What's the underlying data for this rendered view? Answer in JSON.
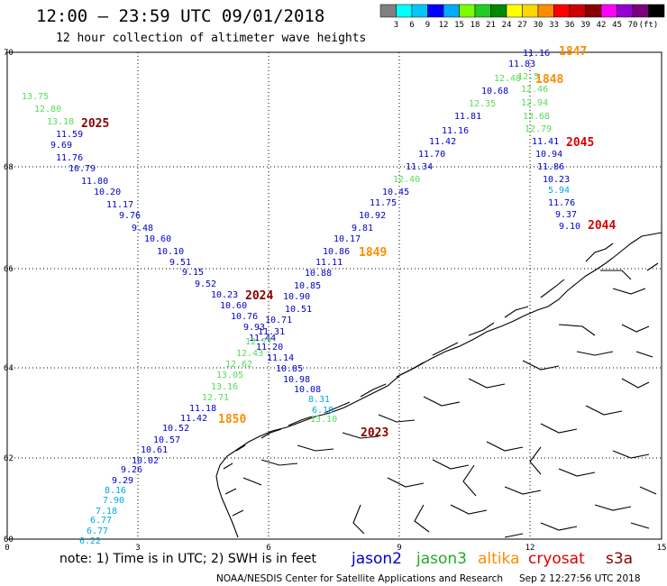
{
  "header": {
    "title": "12:00 – 23:59 UTC 09/01/2018",
    "subtitle": "12 hour collection of altimeter wave heights"
  },
  "colorbar": {
    "colors": [
      "#808080",
      "#00ffff",
      "#00c8ff",
      "#0000ff",
      "#00aaff",
      "#7cfc00",
      "#22cc22",
      "#008800",
      "#ffff00",
      "#ffd700",
      "#ff8c00",
      "#ff0000",
      "#cc0000",
      "#880000",
      "#ff00ff",
      "#9400d3",
      "#7b007b",
      "#000000"
    ],
    "labels": [
      "3",
      "6",
      "9",
      "12",
      "15",
      "18",
      "21",
      "24",
      "27",
      "30",
      "33",
      "36",
      "39",
      "42",
      "45",
      "70",
      "(ft)"
    ]
  },
  "axes": {
    "lat_labels": [
      "70",
      "68",
      "66",
      "64",
      "62",
      "60"
    ],
    "lon_labels": [
      "0",
      "3",
      "6",
      "9",
      "12",
      "15"
    ]
  },
  "passes": [
    {
      "time": "2025",
      "color": "#880000",
      "points": [
        {
          "v": "13.75",
          "c": "#55dd55"
        },
        {
          "v": "12.80",
          "c": "#55dd55"
        },
        {
          "v": "13.18",
          "c": "#55dd55"
        },
        {
          "v": "11.59",
          "c": "#0000cc"
        },
        {
          "v": "9.69",
          "c": "#0000cc"
        },
        {
          "v": "11.76",
          "c": "#0000cc"
        },
        {
          "v": "10.79",
          "c": "#0000cc"
        },
        {
          "v": "11.80",
          "c": "#0000cc"
        },
        {
          "v": "10.20",
          "c": "#0000cc"
        },
        {
          "v": "11.17",
          "c": "#0000cc"
        },
        {
          "v": "9.76",
          "c": "#0000cc"
        },
        {
          "v": "9.48",
          "c": "#0000cc"
        },
        {
          "v": "10.60",
          "c": "#0000cc"
        },
        {
          "v": "10.10",
          "c": "#0000cc"
        },
        {
          "v": "9.51",
          "c": "#0000cc"
        },
        {
          "v": "9.15",
          "c": "#0000cc"
        },
        {
          "v": "9.52",
          "c": "#0000cc"
        },
        {
          "v": "10.23",
          "c": "#0000cc"
        }
      ]
    },
    {
      "time": "2024",
      "color": "#880000",
      "points": [
        {
          "v": "10.60",
          "c": "#0000cc"
        },
        {
          "v": "10.76",
          "c": "#0000cc"
        },
        {
          "v": "9.93",
          "c": "#0000cc"
        },
        {
          "v": "11.44",
          "c": "#0000cc"
        },
        {
          "v": "12.??",
          "c": "#55dd55"
        },
        {
          "v": "12.43",
          "c": "#55dd55"
        },
        {
          "v": "12.62",
          "c": "#55dd55"
        },
        {
          "v": "13.05",
          "c": "#55dd55"
        },
        {
          "v": "13.16",
          "c": "#55dd55"
        },
        {
          "v": "12.71",
          "c": "#55dd55"
        },
        {
          "v": "11.18",
          "c": "#0000cc"
        },
        {
          "v": "11.42",
          "c": "#0000cc"
        },
        {
          "v": "10.52",
          "c": "#0000cc"
        },
        {
          "v": "10.57",
          "c": "#0000cc"
        },
        {
          "v": "10.61",
          "c": "#0000cc"
        },
        {
          "v": "10.02",
          "c": "#0000cc"
        },
        {
          "v": "9.26",
          "c": "#0000cc"
        },
        {
          "v": "9.29",
          "c": "#0000cc"
        },
        {
          "v": "8.16",
          "c": "#00aadd"
        },
        {
          "v": "7.90",
          "c": "#00aadd"
        },
        {
          "v": "7.18",
          "c": "#00aadd"
        },
        {
          "v": "6.77",
          "c": "#00aadd"
        },
        {
          "v": "6.77",
          "c": "#00aadd"
        },
        {
          "v": "6.22",
          "c": "#00aadd"
        }
      ]
    },
    {
      "time": "1850",
      "color": "#ff8c00"
    },
    {
      "time": "1849",
      "color": "#ff8c00",
      "points": [
        {
          "v": "11.16",
          "c": "#0000cc"
        },
        {
          "v": "11.83",
          "c": "#0000cc"
        },
        {
          "v": "12.48",
          "c": "#55dd55"
        },
        {
          "v": "10.68",
          "c": "#0000cc"
        },
        {
          "v": "12.35",
          "c": "#55dd55"
        },
        {
          "v": "11.81",
          "c": "#0000cc"
        },
        {
          "v": "11.16",
          "c": "#0000cc"
        },
        {
          "v": "11.42",
          "c": "#0000cc"
        },
        {
          "v": "11.70",
          "c": "#0000cc"
        },
        {
          "v": "11.34",
          "c": "#0000cc"
        },
        {
          "v": "12.40",
          "c": "#55dd55"
        },
        {
          "v": "10.45",
          "c": "#0000cc"
        },
        {
          "v": "11.75",
          "c": "#0000cc"
        },
        {
          "v": "10.92",
          "c": "#0000cc"
        },
        {
          "v": "9.81",
          "c": "#0000cc"
        },
        {
          "v": "10.17",
          "c": "#0000cc"
        },
        {
          "v": "10.86",
          "c": "#0000cc"
        },
        {
          "v": "11.11",
          "c": "#0000cc"
        },
        {
          "v": "10.88",
          "c": "#0000cc"
        },
        {
          "v": "10.85",
          "c": "#0000cc"
        },
        {
          "v": "10.90",
          "c": "#0000cc"
        },
        {
          "v": "10.51",
          "c": "#0000cc"
        },
        {
          "v": "10.71",
          "c": "#0000cc"
        },
        {
          "v": "11.31",
          "c": "#0000cc"
        },
        {
          "v": "11.20",
          "c": "#0000cc"
        },
        {
          "v": "11.14",
          "c": "#0000cc"
        },
        {
          "v": "10.85",
          "c": "#0000cc"
        },
        {
          "v": "10.98",
          "c": "#0000cc"
        },
        {
          "v": "10.08",
          "c": "#0000cc"
        },
        {
          "v": "8.31",
          "c": "#00aadd"
        },
        {
          "v": "6.18",
          "c": "#00aadd"
        },
        {
          "v": "13.10",
          "c": "#55dd55"
        }
      ]
    },
    {
      "time": "1847",
      "color": "#ff8c00"
    },
    {
      "time": "1848",
      "color": "#ff8c00",
      "points": [
        {
          "v": "12.5",
          "c": "#55dd55"
        },
        {
          "v": "12.46",
          "c": "#55dd55"
        },
        {
          "v": "12.94",
          "c": "#55dd55"
        },
        {
          "v": "13.68",
          "c": "#55dd55"
        },
        {
          "v": "12.79",
          "c": "#55dd55"
        }
      ]
    },
    {
      "time": "2045",
      "color": "#dd0000",
      "points": [
        {
          "v": "11.41",
          "c": "#0000cc"
        },
        {
          "v": "10.94",
          "c": "#0000cc"
        },
        {
          "v": "11.86",
          "c": "#0000cc"
        },
        {
          "v": "10.23",
          "c": "#0000cc"
        },
        {
          "v": "5.94",
          "c": "#00aadd"
        },
        {
          "v": "11.76",
          "c": "#0000cc"
        },
        {
          "v": "9.37",
          "c": "#0000cc"
        },
        {
          "v": "9.10",
          "c": "#0000cc"
        }
      ]
    },
    {
      "time": "2044",
      "color": "#dd0000"
    },
    {
      "time": "2023",
      "color": "#880000"
    }
  ],
  "footer": {
    "note": "note: 1) Time is in UTC; 2) SWH is in feet",
    "legend": [
      {
        "label": "jason2",
        "color": "#0000cc"
      },
      {
        "label": "jason3",
        "color": "#22aa22"
      },
      {
        "label": "altika",
        "color": "#ff8c00"
      },
      {
        "label": "cryosat",
        "color": "#dd0000"
      },
      {
        "label": "s3a",
        "color": "#880000"
      }
    ],
    "credit": "NOAA/NESDIS Center for Satellite Applications and Research",
    "timestamp": "Sep  2 12:27:56 UTC 2018"
  }
}
